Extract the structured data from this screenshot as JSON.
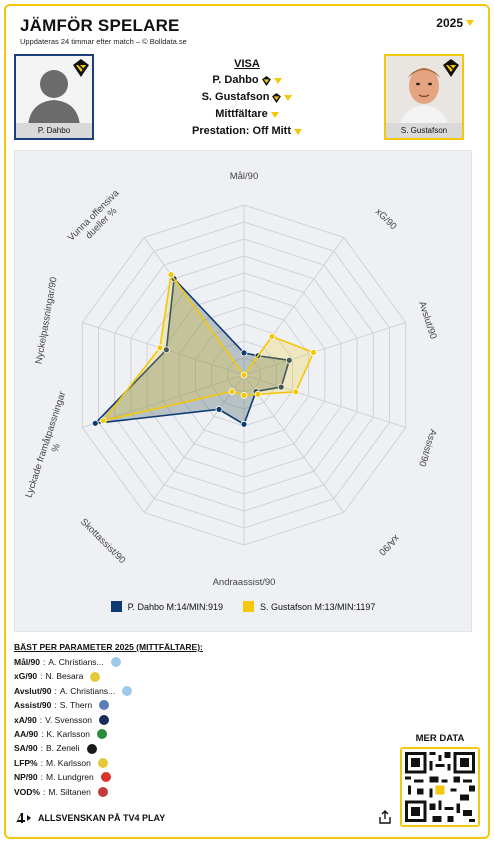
{
  "header": {
    "title": "JÄMFÖR SPELARE",
    "subtitle": "Uppdateras 24 timmar efter match – © Bolldata.se",
    "season": "2025"
  },
  "players": {
    "left": {
      "name": "P. Dahbo",
      "club_icon": "aik-badge-icon",
      "color": "#0e3a73"
    },
    "right": {
      "name": "S. Gustafson",
      "club_icon": "aik-badge-icon",
      "color": "#f3c80a"
    }
  },
  "visa": {
    "header": "VISA",
    "player1": "P. Dahbo",
    "player2": "S. Gustafson",
    "position": "Mittfältare",
    "prestation": "Prestation: Off Mitt"
  },
  "chart_data": {
    "type": "radar",
    "axes": [
      "Mål/90",
      "xG/90",
      "Avslut/90",
      "Assist/90",
      "xA/90",
      "Andraassist/90",
      "Skottassist/90",
      "Lyckade framåtpassningar %",
      "Nyckelpassningar/90",
      "Vunna offensiva dueller %"
    ],
    "rings": 10,
    "series": [
      {
        "name": "P. Dahbo M:14/MIN:919",
        "values": [
          0.13,
          0.14,
          0.28,
          0.23,
          0.12,
          0.29,
          0.25,
          0.92,
          0.48,
          0.7
        ],
        "color": "#0e3a73"
      },
      {
        "name": "S. Gustafson M:13/MIN:1197",
        "values": [
          0.0,
          0.28,
          0.43,
          0.32,
          0.14,
          0.12,
          0.12,
          0.87,
          0.52,
          0.73
        ],
        "color": "#f3c80a"
      }
    ]
  },
  "best": {
    "header": "BÄST PER PARAMETER 2025 (MITTFÄLTARE):",
    "rows": [
      {
        "param": "Mål/90",
        "player": "A. Christians...",
        "icon": "club-light-blue-icon",
        "color": "#9fc9e8"
      },
      {
        "param": "xG/90",
        "player": "N. Besara",
        "icon": "club-green-yellow-icon",
        "color": "#e3c93a"
      },
      {
        "param": "Avslut/90",
        "player": "A. Christians...",
        "icon": "club-light-blue-icon",
        "color": "#9fc9e8"
      },
      {
        "param": "Assist/90",
        "player": "S. Thern",
        "icon": "club-blue-white-icon",
        "color": "#5a7db8"
      },
      {
        "param": "xA/90",
        "player": "V. Svensson",
        "icon": "club-navy-icon",
        "color": "#1b2b5a"
      },
      {
        "param": "AA/90",
        "player": "K. Karlsson",
        "icon": "club-green-icon",
        "color": "#2e8b3a"
      },
      {
        "param": "SA/90",
        "player": "B. Zeneli",
        "icon": "club-black-yellow-icon",
        "color": "#1a1a1a"
      },
      {
        "param": "LFP%",
        "player": "M. Karlsson",
        "icon": "club-green-yellow-icon",
        "color": "#e3c93a"
      },
      {
        "param": "NP/90",
        "player": "M. Lundgren",
        "icon": "club-red-icon",
        "color": "#d8342c"
      },
      {
        "param": "VOD%",
        "player": "M. Siltanen",
        "icon": "club-red-blue-icon",
        "color": "#c43b3b"
      }
    ]
  },
  "mer_data": {
    "label": "MER DATA"
  },
  "footer": {
    "text": "ALLSVENSKAN PÅ TV4 PLAY",
    "logo": "tv4-logo-icon",
    "share_icon": "share-icon"
  },
  "colors": {
    "accent": "#f3c80a",
    "navy": "#0e3a73"
  }
}
